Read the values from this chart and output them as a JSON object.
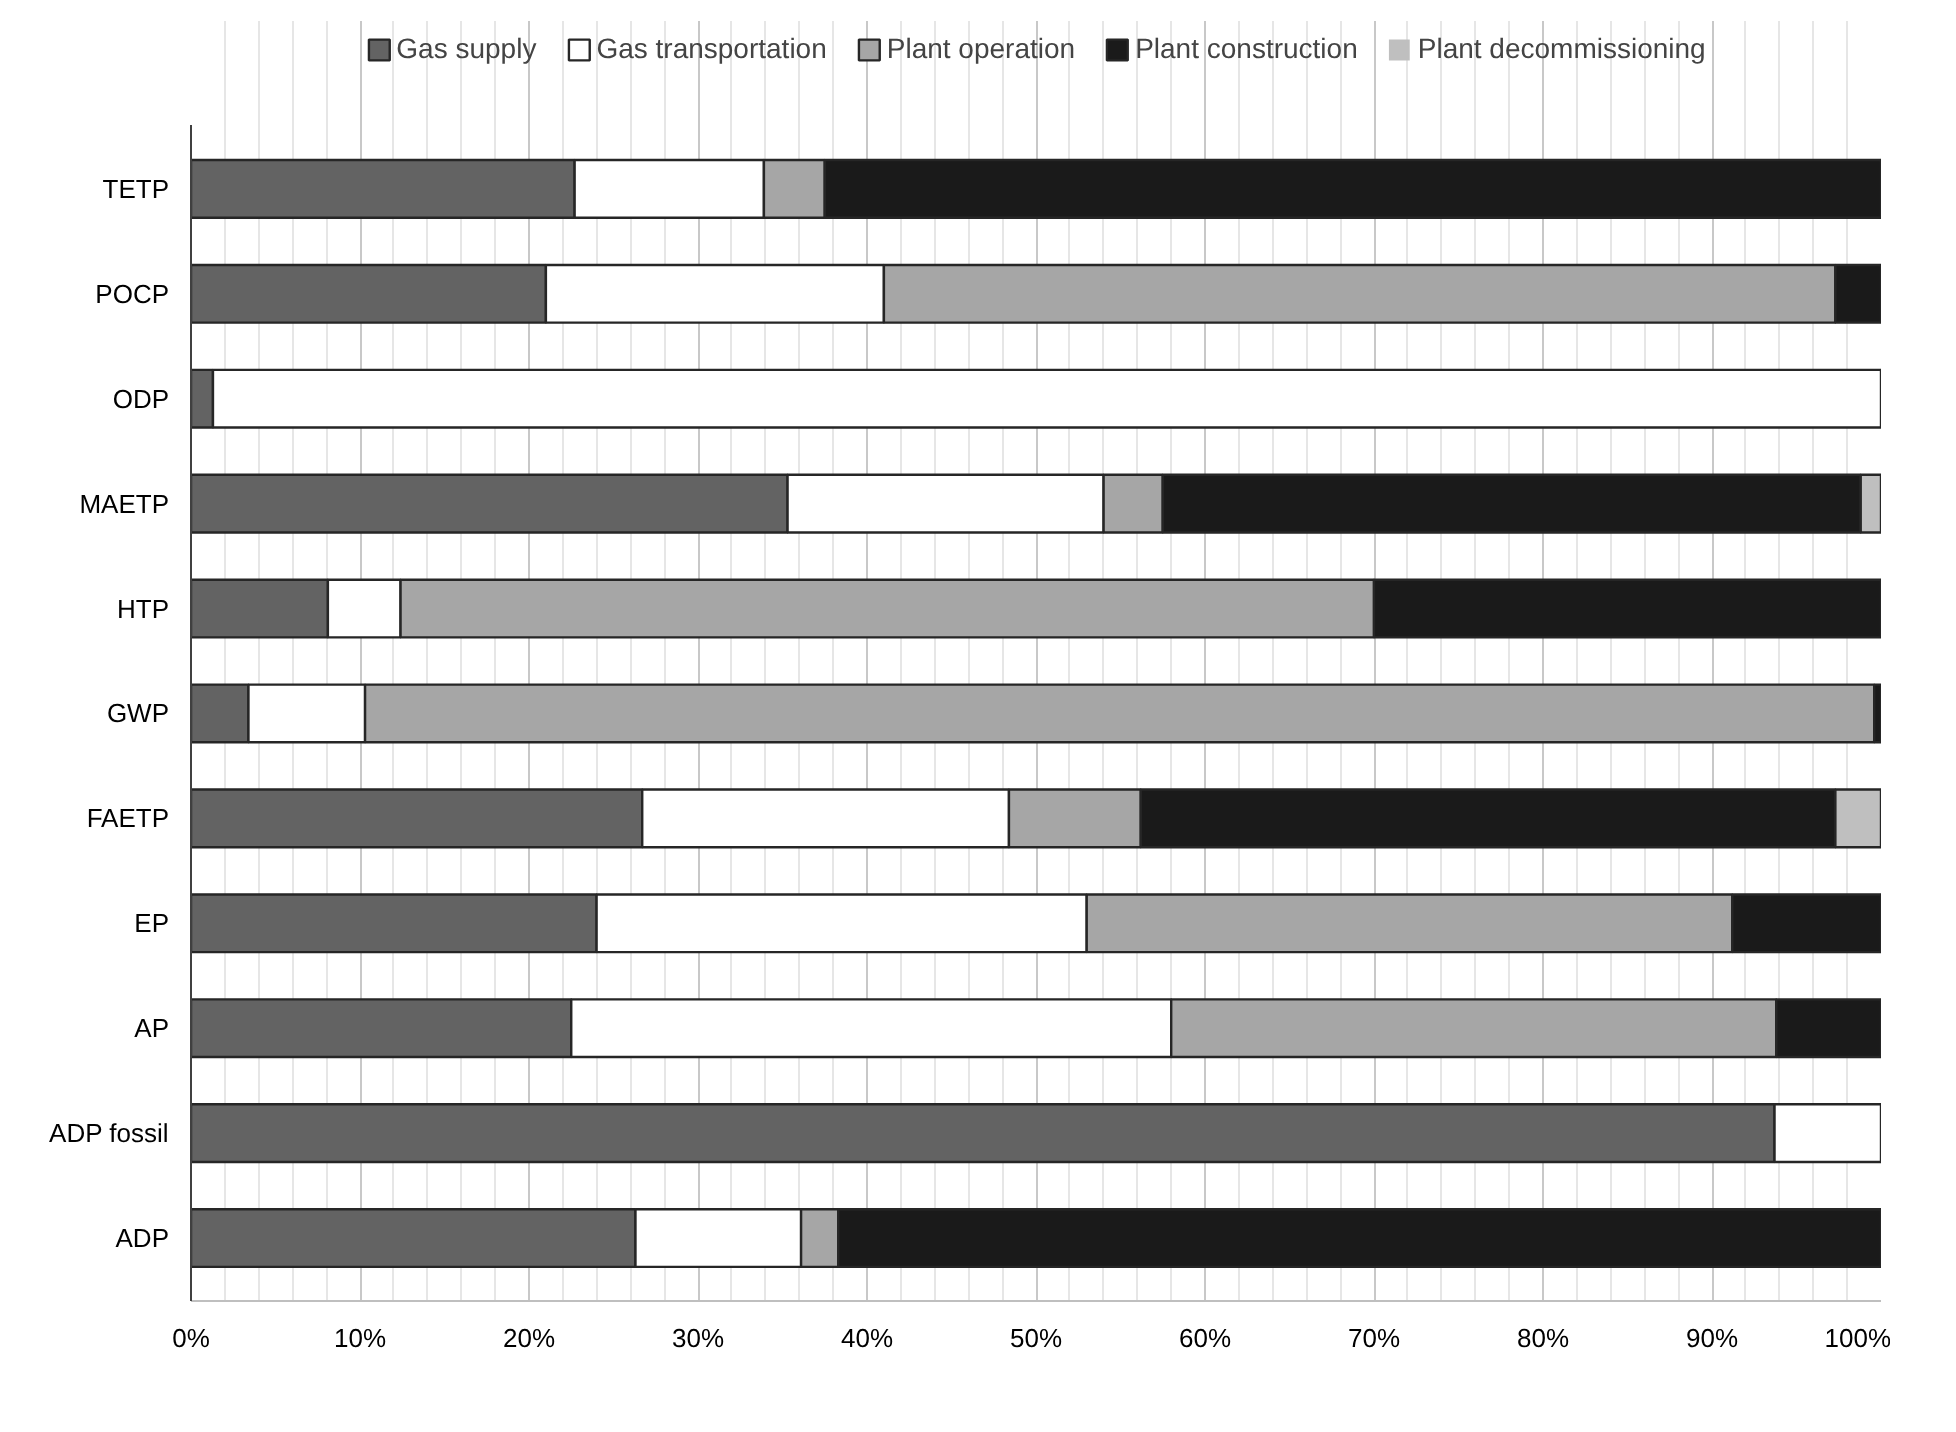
{
  "chart_data": {
    "type": "bar",
    "orientation": "horizontal",
    "stacked": true,
    "categories": [
      "TETP",
      "POCP",
      "ODP",
      "MAETP",
      "HTP",
      "GWP",
      "FAETP",
      "EP",
      "AP",
      "ADP fossil",
      "ADP"
    ],
    "series": [
      {
        "name": "Gas supply",
        "color": "#636363",
        "values": [
          22.7,
          21,
          1.3,
          35.3,
          8.1,
          3.4,
          26.7,
          24,
          22.5,
          93.7,
          26.3
        ]
      },
      {
        "name": "Gas transportation",
        "color": "#ffffff",
        "values": [
          11.2,
          20,
          98.7,
          18.7,
          4.3,
          6.9,
          21.7,
          29,
          35.5,
          6.3,
          9.8
        ]
      },
      {
        "name": "Plant operation",
        "color": "#a6a6a6",
        "values": [
          3.6,
          56.3,
          0,
          3.5,
          57.6,
          89.3,
          7.8,
          38.2,
          35.8,
          0,
          2.2
        ]
      },
      {
        "name": "Plant construction",
        "color": "#1a1a1a",
        "values": [
          62.5,
          2.7,
          0,
          41.3,
          30,
          0.4,
          41.1,
          8.8,
          6.2,
          0,
          61.7
        ]
      },
      {
        "name": "Plant decommissioning",
        "color": "#bfbfbf",
        "values": [
          0,
          0,
          0,
          1.2,
          0,
          0,
          2.7,
          0,
          0,
          0,
          0
        ]
      }
    ],
    "xlim": [
      0,
      100
    ],
    "xticks": [
      {
        "value": 0,
        "label": "0%"
      },
      {
        "value": 10,
        "label": "10%"
      },
      {
        "value": 20,
        "label": "20%"
      },
      {
        "value": 30,
        "label": "30%"
      },
      {
        "value": 40,
        "label": "40%"
      },
      {
        "value": 50,
        "label": "50%"
      },
      {
        "value": 60,
        "label": "60%"
      },
      {
        "value": 70,
        "label": "70%"
      },
      {
        "value": 80,
        "label": "80%"
      },
      {
        "value": 90,
        "label": "90%"
      },
      {
        "value": 100,
        "label": "100%"
      }
    ],
    "grid": "x",
    "legend": "top"
  }
}
